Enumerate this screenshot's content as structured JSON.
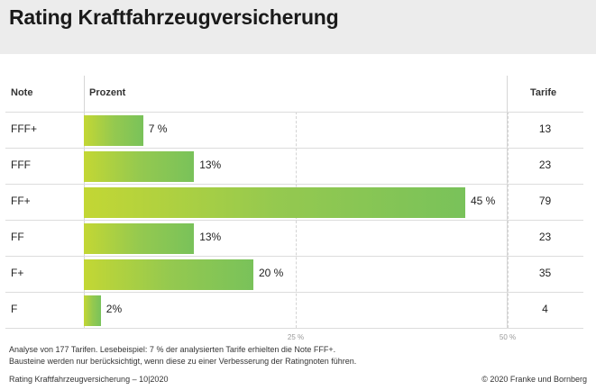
{
  "title": "Rating Kraftfahrzeugversicherung",
  "columns": {
    "note": "Note",
    "percent": "Prozent",
    "tariffs": "Tarife"
  },
  "chart_data": {
    "type": "bar",
    "orientation": "horizontal",
    "categories": [
      "FFF+",
      "FFF",
      "FF+",
      "FF",
      "F+",
      "F"
    ],
    "values": [
      7,
      13,
      45,
      13,
      20,
      2
    ],
    "value_labels": [
      "7 %",
      "13%",
      "45 %",
      "13%",
      "20 %",
      "2%"
    ],
    "tariffs": [
      13,
      23,
      79,
      23,
      35,
      4
    ],
    "xlim": [
      0,
      50
    ],
    "xticks": [
      "25 %",
      "50 %"
    ],
    "grid": true
  },
  "notes": {
    "line1": "Analyse von 177 Tarifen. Lesebeispiel: 7 % der analysierten Tarife erhielten die Note FFF+.",
    "line2": "Bausteine werden nur berücksichtigt, wenn diese zu einer Verbesserung der Ratingnoten führen."
  },
  "footer": {
    "left": "Rating Kraftfahrzeugversicherung – 10|2020",
    "right": "© 2020 Franke und Bornberg"
  }
}
